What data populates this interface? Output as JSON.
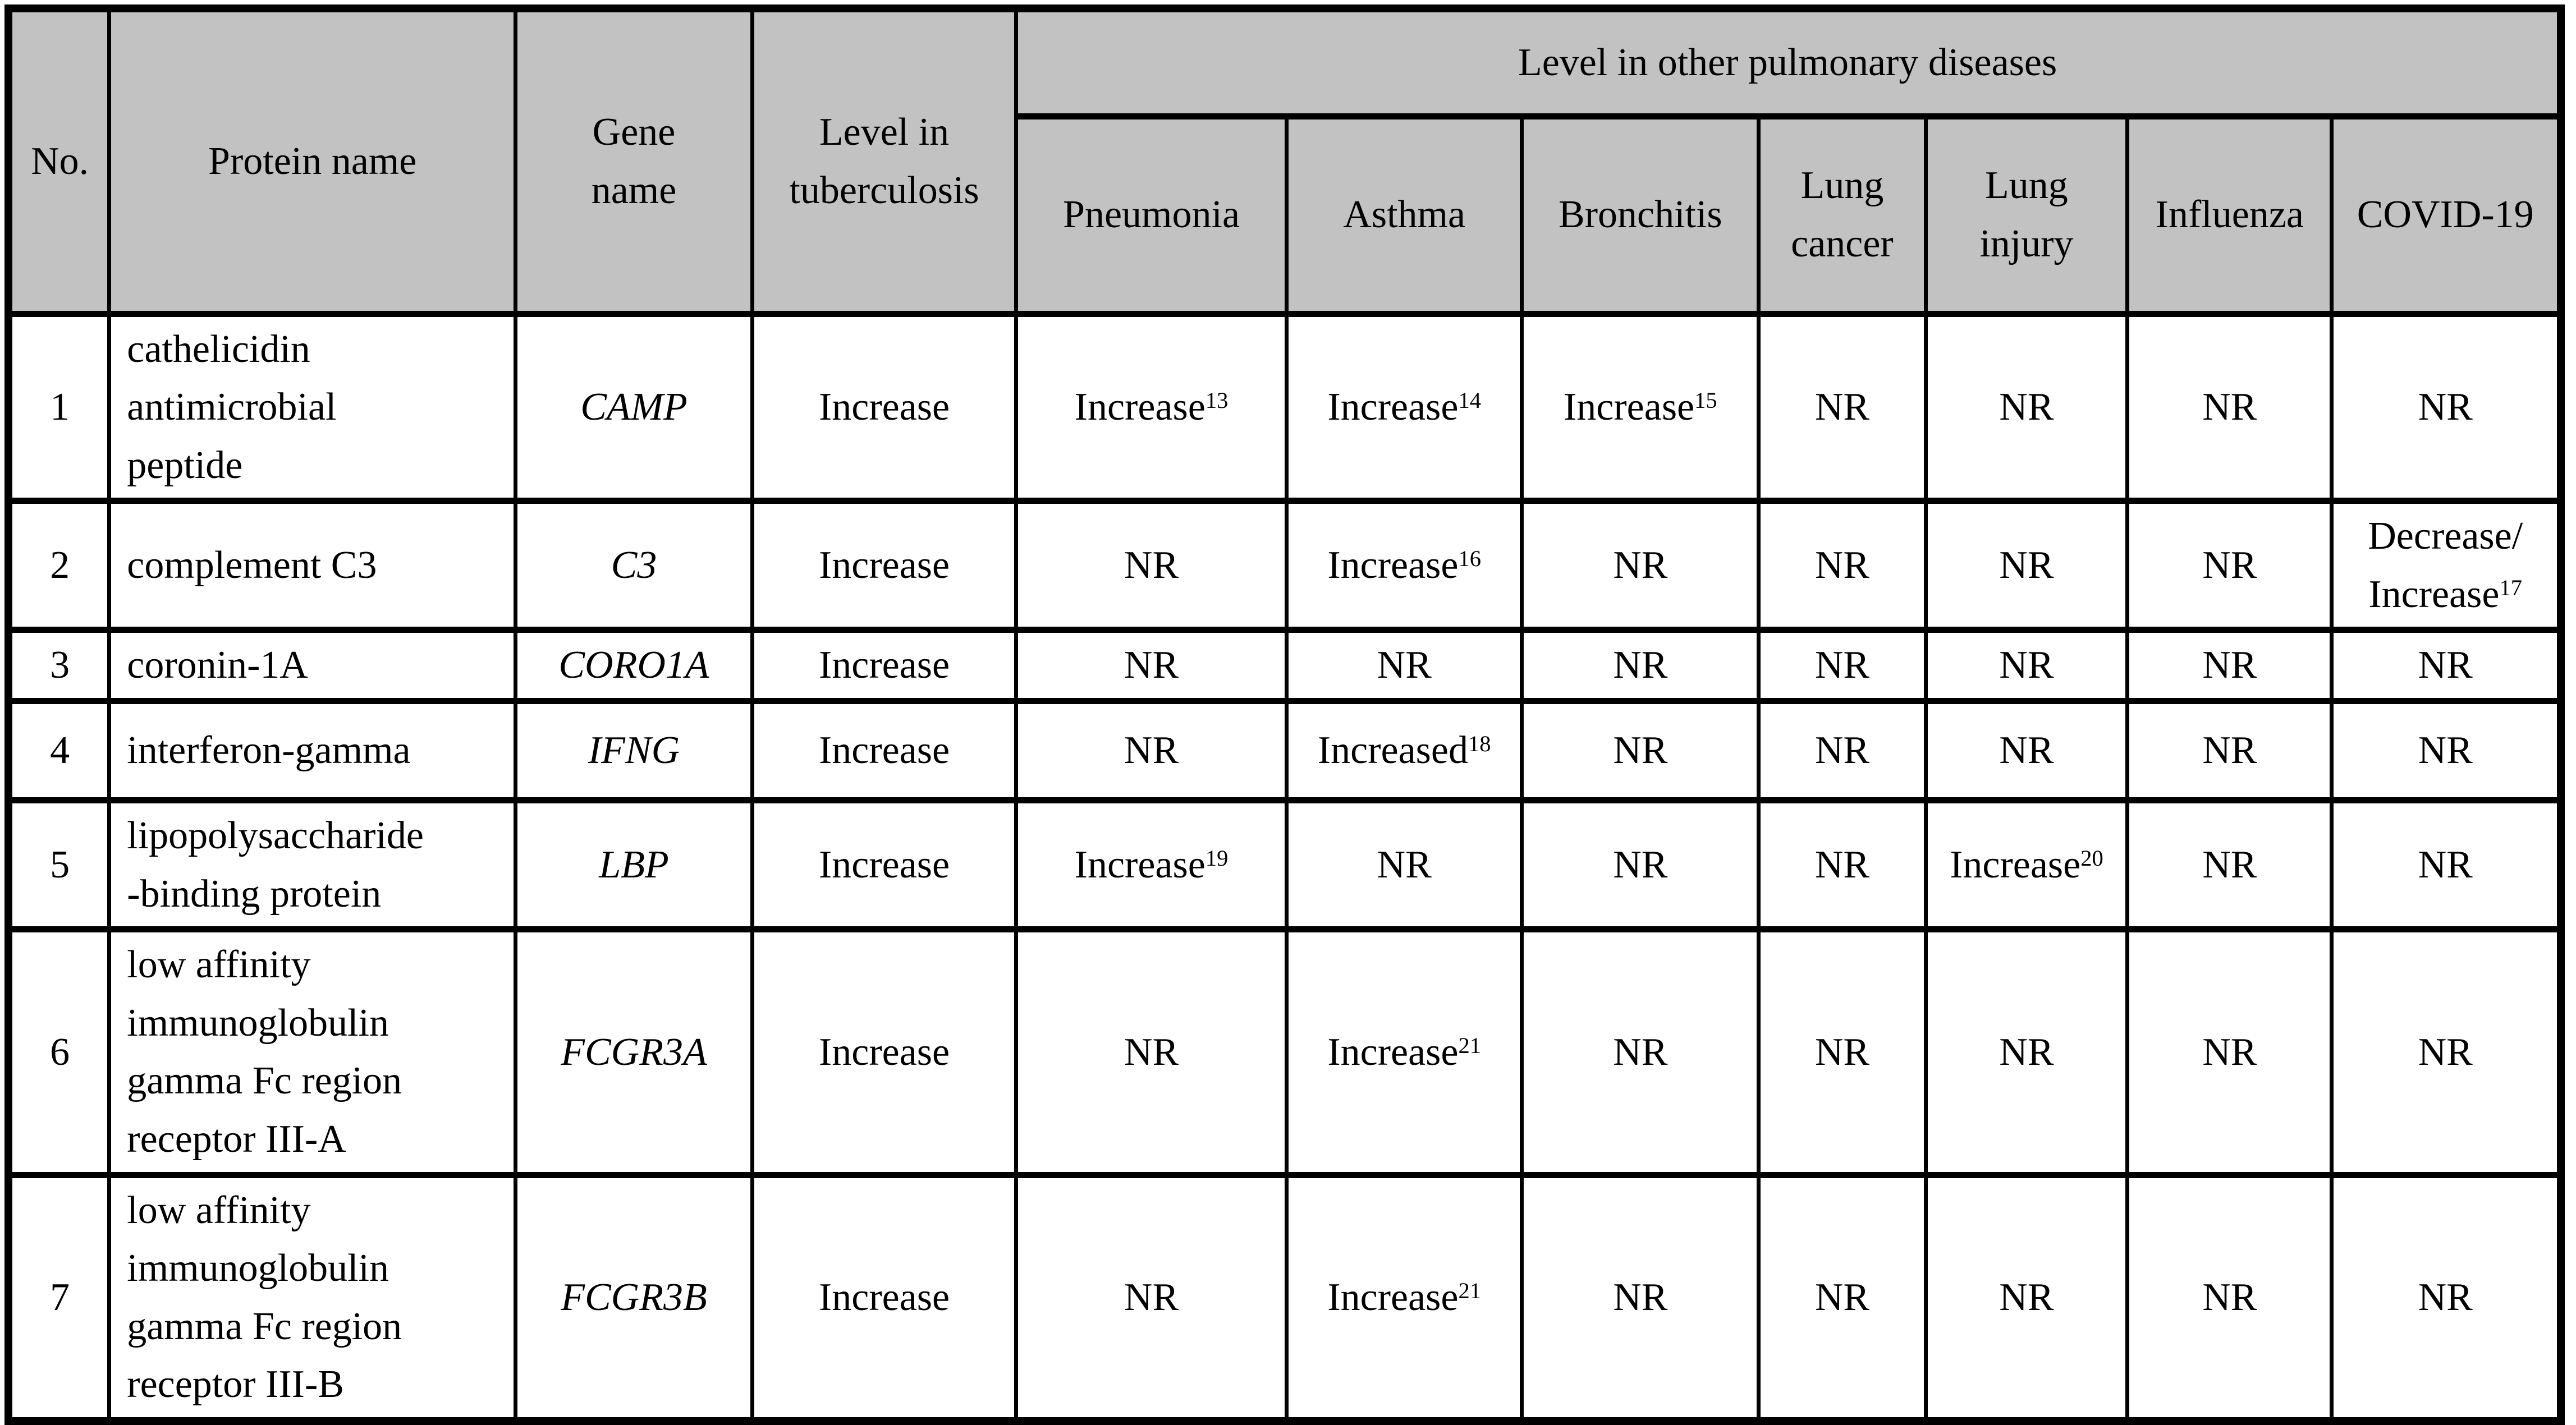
{
  "colors": {
    "header_bg": "#c2c2c2",
    "border": "#000000",
    "text": "#000000"
  },
  "table": {
    "header": {
      "no": "No.",
      "protein": "Protein name",
      "gene": "Gene\nname",
      "level_tb": "Level in\ntuberculosis",
      "group": "Level in other pulmonary diseases",
      "diseases": [
        "Pneumonia",
        "Asthma",
        "Bronchitis",
        "Lung\ncancer",
        "Lung\ninjury",
        "Influenza",
        "COVID-19"
      ]
    },
    "rows": [
      {
        "no": "1",
        "protein": "cathelicidin\nantimicrobial\npeptide",
        "gene": "CAMP",
        "level_tb": "Increase",
        "values": [
          [
            {
              "t": "Increase",
              "sup": "13"
            }
          ],
          [
            {
              "t": "Increase",
              "sup": "14"
            }
          ],
          [
            {
              "t": "Increase",
              "sup": "15"
            }
          ],
          [
            {
              "t": "NR"
            }
          ],
          [
            {
              "t": "NR"
            }
          ],
          [
            {
              "t": "NR"
            }
          ],
          [
            {
              "t": "NR"
            }
          ]
        ]
      },
      {
        "no": "2",
        "protein": "complement C3",
        "gene": "C3",
        "level_tb": "Increase",
        "values": [
          [
            {
              "t": "NR"
            }
          ],
          [
            {
              "t": "Increase",
              "sup": "16"
            }
          ],
          [
            {
              "t": "NR"
            }
          ],
          [
            {
              "t": "NR"
            }
          ],
          [
            {
              "t": "NR"
            }
          ],
          [
            {
              "t": "NR"
            }
          ],
          [
            {
              "t": "Decrease/"
            },
            {
              "t": "Increase",
              "sup": "17"
            }
          ]
        ]
      },
      {
        "no": "3",
        "protein": "coronin-1A",
        "gene": "CORO1A",
        "level_tb": "Increase",
        "values": [
          [
            {
              "t": "NR"
            }
          ],
          [
            {
              "t": "NR"
            }
          ],
          [
            {
              "t": "NR"
            }
          ],
          [
            {
              "t": "NR"
            }
          ],
          [
            {
              "t": "NR"
            }
          ],
          [
            {
              "t": "NR"
            }
          ],
          [
            {
              "t": "NR"
            }
          ]
        ]
      },
      {
        "no": "4",
        "protein": "interferon-gamma",
        "gene": "IFNG",
        "level_tb": "Increase",
        "values": [
          [
            {
              "t": "NR"
            }
          ],
          [
            {
              "t": "Increased",
              "sup": "18"
            }
          ],
          [
            {
              "t": "NR"
            }
          ],
          [
            {
              "t": "NR"
            }
          ],
          [
            {
              "t": "NR"
            }
          ],
          [
            {
              "t": "NR"
            }
          ],
          [
            {
              "t": "NR"
            }
          ]
        ]
      },
      {
        "no": "5",
        "protein": "lipopolysaccharide\n-binding protein",
        "gene": "LBP",
        "level_tb": "Increase",
        "values": [
          [
            {
              "t": "Increase",
              "sup": "19"
            }
          ],
          [
            {
              "t": "NR"
            }
          ],
          [
            {
              "t": "NR"
            }
          ],
          [
            {
              "t": "NR"
            }
          ],
          [
            {
              "t": "Increase",
              "sup": "20"
            }
          ],
          [
            {
              "t": "NR"
            }
          ],
          [
            {
              "t": "NR"
            }
          ]
        ]
      },
      {
        "no": "6",
        "protein": "low affinity\nimmunoglobulin\ngamma Fc region\nreceptor III-A",
        "gene": "FCGR3A",
        "level_tb": "Increase",
        "values": [
          [
            {
              "t": "NR"
            }
          ],
          [
            {
              "t": "Increase",
              "sup": "21"
            }
          ],
          [
            {
              "t": "NR"
            }
          ],
          [
            {
              "t": "NR"
            }
          ],
          [
            {
              "t": "NR"
            }
          ],
          [
            {
              "t": "NR"
            }
          ],
          [
            {
              "t": "NR"
            }
          ]
        ]
      },
      {
        "no": "7",
        "protein": "low affinity\nimmunoglobulin\ngamma Fc region\nreceptor III-B",
        "gene": "FCGR3B",
        "level_tb": "Increase",
        "values": [
          [
            {
              "t": "NR"
            }
          ],
          [
            {
              "t": "Increase",
              "sup": "21"
            }
          ],
          [
            {
              "t": "NR"
            }
          ],
          [
            {
              "t": "NR"
            }
          ],
          [
            {
              "t": "NR"
            }
          ],
          [
            {
              "t": "NR"
            }
          ],
          [
            {
              "t": "NR"
            }
          ]
        ]
      }
    ]
  }
}
